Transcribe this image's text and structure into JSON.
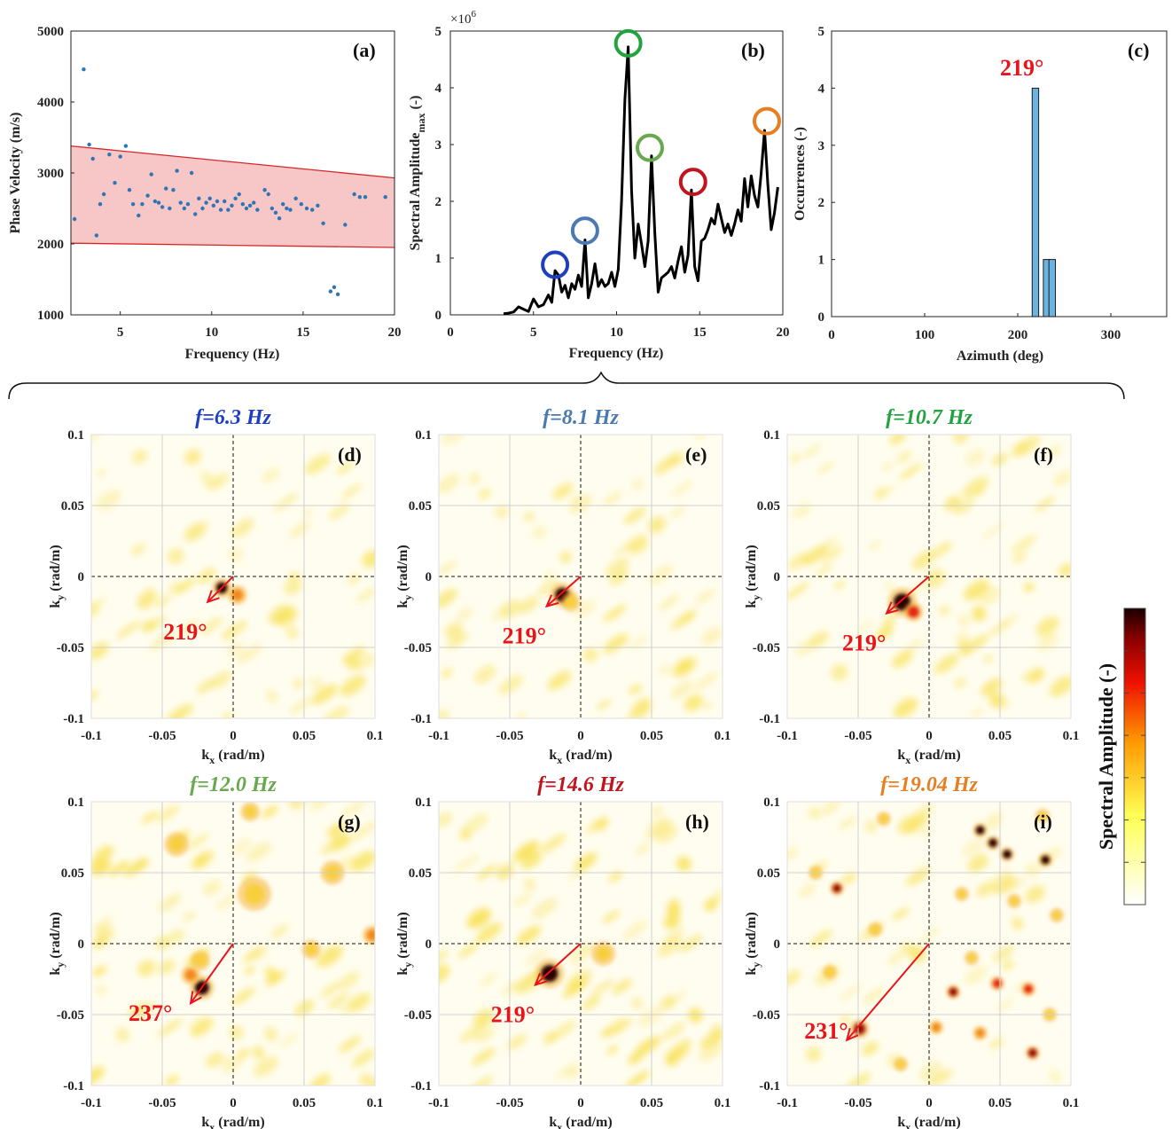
{
  "chart_data": [
    {
      "id": "a",
      "type": "scatter",
      "panel_label": "(a)",
      "xlabel": "Frequency (Hz)",
      "ylabel": "Phase Velocity (m/s)",
      "xlim": [
        2.3,
        20
      ],
      "ylim": [
        1000,
        5000
      ],
      "xticks": [
        5,
        10,
        15,
        20
      ],
      "yticks": [
        1000,
        2000,
        3000,
        4000,
        5000
      ],
      "band": {
        "lower": [
          [
            2.3,
            2010
          ],
          [
            20,
            1950
          ]
        ],
        "upper": [
          [
            2.3,
            3380
          ],
          [
            20,
            2930
          ]
        ],
        "fill": "#f7c6c6",
        "stroke": "#d62728"
      },
      "marker_color": "#2e75b6",
      "points": [
        [
          2.5,
          2350
        ],
        [
          3.0,
          4460
        ],
        [
          3.3,
          3400
        ],
        [
          3.5,
          3200
        ],
        [
          3.7,
          2120
        ],
        [
          3.9,
          2560
        ],
        [
          4.1,
          2700
        ],
        [
          4.4,
          3260
        ],
        [
          4.7,
          2860
        ],
        [
          5.0,
          3230
        ],
        [
          5.3,
          3380
        ],
        [
          5.5,
          2760
        ],
        [
          5.7,
          2560
        ],
        [
          6.0,
          2400
        ],
        [
          6.2,
          2560
        ],
        [
          6.5,
          2680
        ],
        [
          6.7,
          2980
        ],
        [
          6.9,
          2600
        ],
        [
          7.1,
          2580
        ],
        [
          7.3,
          2520
        ],
        [
          7.5,
          2780
        ],
        [
          7.7,
          2500
        ],
        [
          7.9,
          2760
        ],
        [
          8.1,
          3030
        ],
        [
          8.3,
          2580
        ],
        [
          8.5,
          2500
        ],
        [
          8.7,
          2560
        ],
        [
          8.9,
          3000
        ],
        [
          9.1,
          2420
        ],
        [
          9.3,
          2640
        ],
        [
          9.5,
          2500
        ],
        [
          9.7,
          2580
        ],
        [
          9.9,
          2640
        ],
        [
          10.1,
          2540
        ],
        [
          10.3,
          2600
        ],
        [
          10.5,
          2480
        ],
        [
          10.7,
          2600
        ],
        [
          10.9,
          2480
        ],
        [
          11.1,
          2540
        ],
        [
          11.3,
          2640
        ],
        [
          11.5,
          2700
        ],
        [
          11.7,
          2560
        ],
        [
          11.9,
          2500
        ],
        [
          12.1,
          2540
        ],
        [
          12.3,
          2580
        ],
        [
          12.5,
          2480
        ],
        [
          12.9,
          2760
        ],
        [
          13.1,
          2700
        ],
        [
          13.3,
          2500
        ],
        [
          13.5,
          2440
        ],
        [
          13.7,
          2360
        ],
        [
          13.9,
          2560
        ],
        [
          14.1,
          2500
        ],
        [
          14.3,
          2480
        ],
        [
          14.6,
          2640
        ],
        [
          14.9,
          2560
        ],
        [
          15.2,
          2500
        ],
        [
          15.5,
          2480
        ],
        [
          15.8,
          2540
        ],
        [
          16.1,
          2290
        ],
        [
          16.5,
          1330
        ],
        [
          16.7,
          1390
        ],
        [
          16.9,
          1290
        ],
        [
          17.3,
          2270
        ],
        [
          17.8,
          2700
        ],
        [
          18.1,
          2660
        ],
        [
          18.4,
          2660
        ],
        [
          19.5,
          2660
        ]
      ]
    },
    {
      "id": "b",
      "type": "line",
      "panel_label": "(b)",
      "xlabel": "Frequency (Hz)",
      "ylabel": "Spectral Amplitude",
      "ylabel_sub": "max",
      "ylabel_unit": "(-)",
      "y_exponent_label": "×10",
      "y_exponent": "6",
      "xlim": [
        0,
        20
      ],
      "ylim": [
        0,
        5
      ],
      "xticks": [
        0,
        5,
        10,
        15,
        20
      ],
      "yticks": [
        0,
        1,
        2,
        3,
        4,
        5
      ],
      "x": [
        3.2,
        3.5,
        3.8,
        4.1,
        4.4,
        4.7,
        5.0,
        5.3,
        5.6,
        5.9,
        6.1,
        6.3,
        6.5,
        6.7,
        6.9,
        7.1,
        7.3,
        7.5,
        7.7,
        7.9,
        8.1,
        8.3,
        8.5,
        8.7,
        8.9,
        9.1,
        9.3,
        9.5,
        9.7,
        9.9,
        10.1,
        10.3,
        10.5,
        10.7,
        10.9,
        11.1,
        11.3,
        11.5,
        11.7,
        11.9,
        12.1,
        12.3,
        12.5,
        12.7,
        12.9,
        13.1,
        13.3,
        13.5,
        13.7,
        13.9,
        14.1,
        14.3,
        14.5,
        14.7,
        14.9,
        15.1,
        15.3,
        15.5,
        15.7,
        15.9,
        16.1,
        16.3,
        16.5,
        16.7,
        16.9,
        17.1,
        17.3,
        17.5,
        17.7,
        17.9,
        18.1,
        18.3,
        18.5,
        18.7,
        18.9,
        19.1,
        19.3,
        19.5,
        19.7
      ],
      "values": [
        0.02,
        0.03,
        0.05,
        0.14,
        0.1,
        0.06,
        0.28,
        0.14,
        0.18,
        0.35,
        0.22,
        0.78,
        0.7,
        0.4,
        0.52,
        0.3,
        0.55,
        0.45,
        0.7,
        0.5,
        1.32,
        0.3,
        0.55,
        0.9,
        0.5,
        0.62,
        0.5,
        0.55,
        0.75,
        0.5,
        0.8,
        2.0,
        3.8,
        4.72,
        2.2,
        1.0,
        1.6,
        1.25,
        0.85,
        1.3,
        2.8,
        1.45,
        0.4,
        0.65,
        0.7,
        0.75,
        0.85,
        0.65,
        0.95,
        1.2,
        0.75,
        1.05,
        2.2,
        0.85,
        0.6,
        1.3,
        1.35,
        1.5,
        1.7,
        1.6,
        1.95,
        1.7,
        1.45,
        1.6,
        1.4,
        1.6,
        1.85,
        1.65,
        2.4,
        1.9,
        2.45,
        2.1,
        1.9,
        2.5,
        3.25,
        2.3,
        1.5,
        1.8,
        2.25
      ],
      "peaks": [
        {
          "freq": 6.3,
          "value": 0.82,
          "color": "#1f3fbf"
        },
        {
          "freq": 8.1,
          "value": 1.42,
          "color": "#4a7ab0"
        },
        {
          "freq": 10.7,
          "value": 4.72,
          "color": "#22a340"
        },
        {
          "freq": 12.0,
          "value": 2.88,
          "color": "#6aa84f"
        },
        {
          "freq": 14.6,
          "value": 2.28,
          "color": "#c0141e"
        },
        {
          "freq": 19.04,
          "value": 3.35,
          "color": "#e67e22"
        }
      ]
    },
    {
      "id": "c",
      "type": "bar",
      "panel_label": "(c)",
      "xlabel": "Azimuth (deg)",
      "ylabel": "Occurrences (-)",
      "xlim": [
        0,
        360
      ],
      "ylim": [
        0,
        5
      ],
      "xticks": [
        0,
        100,
        200,
        300
      ],
      "yticks": [
        0,
        1,
        2,
        3,
        4,
        5
      ],
      "bar_color": "#6cb4e0",
      "bin_width": 7,
      "bars": [
        {
          "azimuth": 219,
          "count": 4
        },
        {
          "azimuth": 231,
          "count": 1
        },
        {
          "azimuth": 237,
          "count": 1
        }
      ],
      "annotation": "219°"
    },
    {
      "type": "heatmap",
      "xlabel": "k",
      "xlabel_sub": "x",
      "ylabel": "k",
      "ylabel_sub": "y",
      "axis_unit": " (rad/m)",
      "xlim": [
        -0.1,
        0.1
      ],
      "ylim": [
        -0.1,
        0.1
      ],
      "ticks": [
        -0.1,
        -0.05,
        0,
        0.05,
        0.1
      ],
      "tick_labels": [
        "-0.1",
        "-0.05",
        "0",
        "0.05",
        "0.1"
      ],
      "arrow_color": "#e8141b",
      "colorbar_label": "Spectral Amplitude (-)",
      "panels": [
        {
          "label": "(d)",
          "title": "f=6.3 Hz",
          "title_color": "#1f3fbf",
          "azimuth_label": "219°",
          "arrow_to": [
            -0.018,
            -0.018
          ],
          "noise": 0.25,
          "hotspots": [
            [
              -0.008,
              -0.008,
              1.0,
              0.004
            ],
            [
              0.003,
              -0.013,
              0.55,
              0.004
            ]
          ]
        },
        {
          "label": "(e)",
          "title": "f=8.1 Hz",
          "title_color": "#4a7ab0",
          "azimuth_label": "219°",
          "arrow_to": [
            -0.024,
            -0.021
          ],
          "noise": 0.25,
          "hotspots": [
            [
              -0.013,
              -0.013,
              1.0,
              0.005
            ],
            [
              -0.007,
              -0.018,
              0.4,
              0.004
            ]
          ]
        },
        {
          "label": "(f)",
          "title": "f=10.7 Hz",
          "title_color": "#22a340",
          "azimuth_label": "219°",
          "arrow_to": [
            -0.03,
            -0.026
          ],
          "noise": 0.35,
          "hotspots": [
            [
              -0.019,
              -0.018,
              1.0,
              0.006
            ],
            [
              -0.011,
              -0.025,
              0.65,
              0.004
            ]
          ]
        },
        {
          "label": "(g)",
          "title": "f=12.0 Hz",
          "title_color": "#6aa84f",
          "azimuth_label": "237°",
          "arrow_to": [
            -0.03,
            -0.042
          ],
          "noise": 0.4,
          "hotspots": [
            [
              -0.022,
              -0.031,
              1.0,
              0.005
            ],
            [
              -0.03,
              -0.022,
              0.55,
              0.004
            ],
            [
              -0.023,
              -0.012,
              0.35,
              0.004
            ],
            [
              0.015,
              0.035,
              0.35,
              0.007
            ],
            [
              0.055,
              -0.004,
              0.3,
              0.004
            ],
            [
              0.07,
              0.05,
              0.3,
              0.005
            ],
            [
              -0.04,
              0.07,
              0.3,
              0.005
            ],
            [
              0.012,
              0.093,
              0.35,
              0.004
            ],
            [
              0.098,
              0.006,
              0.45,
              0.004
            ]
          ]
        },
        {
          "label": "(h)",
          "title": "f=14.6 Hz",
          "title_color": "#c0141e",
          "azimuth_label": "219°",
          "arrow_to": [
            -0.032,
            -0.029
          ],
          "noise": 0.5,
          "hotspots": [
            [
              -0.022,
              -0.021,
              1.0,
              0.006
            ],
            [
              0.016,
              -0.007,
              0.3,
              0.005
            ]
          ]
        },
        {
          "label": "(i)",
          "title": "f=19.04 Hz",
          "title_color": "#e67e22",
          "azimuth_label": "231°",
          "arrow_to": [
            -0.058,
            -0.068
          ],
          "noise": 0.12,
          "hotspots": [
            [
              -0.049,
              -0.06,
              0.85,
              0.004
            ],
            [
              0.036,
              0.08,
              0.95,
              0.003
            ],
            [
              0.045,
              0.071,
              0.95,
              0.003
            ],
            [
              0.055,
              0.063,
              0.95,
              0.003
            ],
            [
              0.082,
              0.059,
              0.95,
              0.003
            ],
            [
              -0.065,
              0.039,
              0.75,
              0.003
            ],
            [
              0.017,
              -0.034,
              0.75,
              0.003
            ],
            [
              0.048,
              -0.028,
              0.65,
              0.003
            ],
            [
              0.07,
              -0.032,
              0.65,
              0.003
            ],
            [
              0.073,
              -0.077,
              0.75,
              0.003
            ],
            [
              0.005,
              -0.059,
              0.55,
              0.003
            ],
            [
              0.036,
              -0.063,
              0.55,
              0.003
            ],
            [
              -0.038,
              0.01,
              0.35,
              0.003
            ],
            [
              -0.08,
              0.05,
              0.3,
              0.003
            ],
            [
              -0.032,
              0.088,
              0.35,
              0.003
            ],
            [
              0.023,
              0.035,
              0.35,
              0.003
            ],
            [
              0.06,
              0.03,
              0.3,
              0.003
            ],
            [
              0.09,
              0.02,
              0.3,
              0.003
            ],
            [
              -0.07,
              -0.02,
              0.3,
              0.003
            ],
            [
              0.03,
              -0.01,
              0.3,
              0.003
            ],
            [
              0.085,
              -0.05,
              0.35,
              0.003
            ],
            [
              -0.02,
              -0.085,
              0.3,
              0.003
            ],
            [
              0.08,
              0.09,
              0.3,
              0.003
            ]
          ]
        }
      ]
    }
  ]
}
